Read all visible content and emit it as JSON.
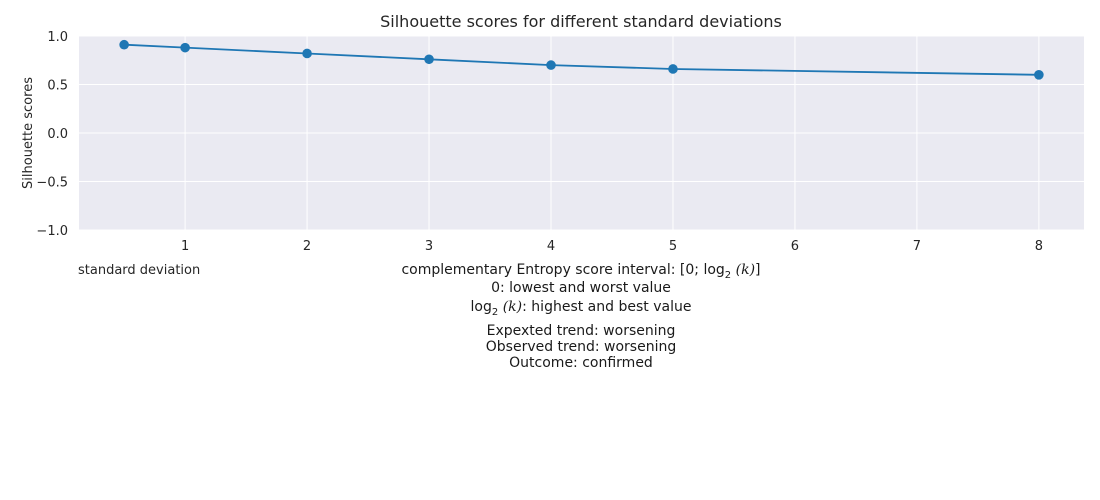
{
  "chart_data": {
    "type": "line",
    "title": "Silhouette scores for different standard deviations",
    "xlabel": "standard deviation",
    "ylabel": "Silhouette scores",
    "x": [
      0.5,
      1,
      2,
      3,
      4,
      5,
      8
    ],
    "series": [
      {
        "values": [
          0.91,
          0.88,
          0.82,
          0.76,
          0.7,
          0.66,
          0.6
        ]
      }
    ],
    "xlim": [
      0.13,
      8.37
    ],
    "ylim": [
      -1.0,
      1.0
    ],
    "xticks": [
      1,
      2,
      3,
      4,
      5,
      6,
      7,
      8
    ],
    "yticks": [
      -1.0,
      -0.5,
      0.0,
      0.5,
      1.0
    ],
    "ytick_labels": [
      "−1.0",
      "−0.5",
      "0.0",
      "0.5",
      "1.0"
    ],
    "grid": true,
    "colors": {
      "line": "#1f77b4",
      "plot_bg": "#eaeaf2",
      "grid": "#ffffff"
    }
  },
  "captions": {
    "interval_prefix": "complementary Entropy score interval: [0; ",
    "log_text": "log",
    "log_sub": "2",
    "k_text": "(k)",
    "interval_suffix": "]",
    "lowest": "0: lowest and worst value",
    "highest_suffix": ": highest and best value",
    "expected": "Expexted trend: worsening",
    "observed": "Observed trend: worsening",
    "outcome": "Outcome: confirmed"
  }
}
